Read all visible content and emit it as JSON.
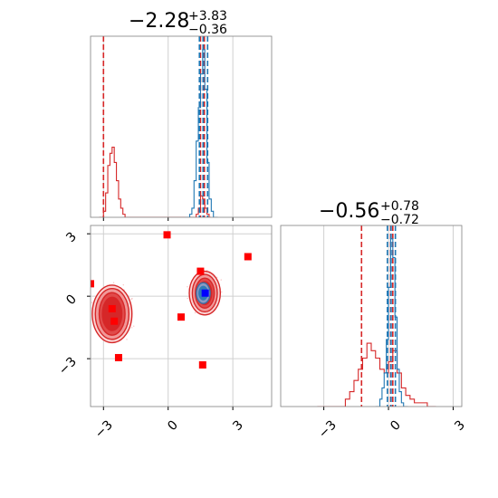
{
  "colors": {
    "red": "#d62728",
    "blue": "#1f77b4",
    "marker_red": "#ff0000",
    "marker_blue": "#0000ff",
    "frame": "#808080",
    "grid": "#d0d0d0"
  },
  "chart_data": [
    {
      "type": "histogram",
      "panel": "top-left",
      "title": {
        "median": "−2.28",
        "upper": "+3.83",
        "lower": "−0.36"
      },
      "xlim": [
        -3.6,
        4.8
      ],
      "grid": true,
      "series": [
        {
          "color": "red",
          "bins": [
            [
              -3.2,
              -3.0,
              0
            ],
            [
              -3.0,
              -2.9,
              2
            ],
            [
              -2.9,
              -2.8,
              8
            ],
            [
              -2.8,
              -2.7,
              17
            ],
            [
              -2.7,
              -2.6,
              21
            ],
            [
              -2.6,
              -2.5,
              23
            ],
            [
              -2.5,
              -2.4,
              18
            ],
            [
              -2.4,
              -2.3,
              12
            ],
            [
              -2.3,
              -2.2,
              6
            ],
            [
              -2.2,
              -2.1,
              3
            ],
            [
              -2.1,
              -2.0,
              1
            ],
            [
              -2.0,
              -1.5,
              0
            ],
            [
              1.0,
              1.3,
              0
            ],
            [
              1.3,
              1.4,
              1
            ],
            [
              1.4,
              1.5,
              3
            ],
            [
              1.5,
              1.6,
              7
            ],
            [
              1.6,
              1.7,
              6
            ],
            [
              1.7,
              1.8,
              3
            ],
            [
              1.8,
              1.9,
              1
            ],
            [
              1.9,
              2.0,
              0
            ]
          ],
          "quantiles": [
            -3.0,
            1.5,
            1.68
          ]
        },
        {
          "color": "blue",
          "bins": [
            [
              0.8,
              1.0,
              0
            ],
            [
              1.0,
              1.1,
              1
            ],
            [
              1.1,
              1.2,
              3
            ],
            [
              1.2,
              1.3,
              12
            ],
            [
              1.3,
              1.4,
              25
            ],
            [
              1.4,
              1.5,
              36
            ],
            [
              1.5,
              1.6,
              47
            ],
            [
              1.6,
              1.7,
              55
            ],
            [
              1.7,
              1.8,
              42
            ],
            [
              1.8,
              1.9,
              18
            ],
            [
              1.9,
              2.0,
              6
            ],
            [
              2.0,
              2.1,
              2
            ],
            [
              2.1,
              2.3,
              0
            ]
          ],
          "quantiles": [
            1.45,
            1.62,
            1.83
          ]
        }
      ]
    },
    {
      "type": "histogram",
      "panel": "bottom-right",
      "title": {
        "median": "−0.56",
        "upper": "+0.78",
        "lower": "−0.72"
      },
      "xlim": [
        -5.0,
        3.4
      ],
      "xticks": [
        "−3",
        "0",
        "3"
      ],
      "grid": true,
      "series": [
        {
          "color": "red",
          "bins": [
            [
              -3.3,
              -2.0,
              0
            ],
            [
              -2.0,
              -1.8,
              2
            ],
            [
              -1.8,
              -1.6,
              4
            ],
            [
              -1.6,
              -1.4,
              7
            ],
            [
              -1.4,
              -1.2,
              10
            ],
            [
              -1.2,
              -1.0,
              13
            ],
            [
              -1.0,
              -0.8,
              17
            ],
            [
              -0.8,
              -0.6,
              15
            ],
            [
              -0.6,
              -0.4,
              13
            ],
            [
              -0.4,
              -0.2,
              10
            ],
            [
              -0.2,
              0.0,
              9
            ],
            [
              0.0,
              0.2,
              12
            ],
            [
              0.2,
              0.4,
              15
            ],
            [
              0.4,
              0.6,
              9
            ],
            [
              0.6,
              0.8,
              5
            ],
            [
              0.8,
              1.0,
              3
            ],
            [
              1.0,
              1.2,
              2
            ],
            [
              1.2,
              1.4,
              1
            ],
            [
              1.4,
              1.8,
              1
            ],
            [
              1.8,
              2.2,
              0
            ]
          ],
          "quantiles": [
            -1.25,
            0.1,
            0.2
          ]
        },
        {
          "color": "blue",
          "bins": [
            [
              -0.6,
              -0.4,
              0
            ],
            [
              -0.4,
              -0.3,
              2
            ],
            [
              -0.3,
              -0.2,
              5
            ],
            [
              -0.2,
              -0.1,
              9
            ],
            [
              -0.1,
              0.0,
              18
            ],
            [
              0.0,
              0.1,
              32
            ],
            [
              0.1,
              0.2,
              45
            ],
            [
              0.2,
              0.3,
              40
            ],
            [
              0.3,
              0.4,
              24
            ],
            [
              0.4,
              0.5,
              10
            ],
            [
              0.5,
              0.6,
              4
            ],
            [
              0.6,
              0.7,
              1
            ],
            [
              0.7,
              0.9,
              0
            ]
          ],
          "quantiles": [
            -0.05,
            0.12,
            0.32
          ]
        }
      ]
    },
    {
      "type": "scatter",
      "panel": "bottom-left",
      "xlim": [
        -3.6,
        4.8
      ],
      "ylim": [
        -5.3,
        3.4
      ],
      "xticks": [
        "−3",
        "0",
        "3"
      ],
      "yticks": [
        "3",
        "0",
        "−3"
      ],
      "grid": true,
      "contours": [
        {
          "cx": -2.6,
          "cy": -0.85,
          "levels": [
            [
              0.92,
              1.38
            ],
            [
              0.78,
              1.22
            ],
            [
              0.6,
              1.02
            ],
            [
              0.45,
              0.8
            ]
          ],
          "color": "red"
        },
        {
          "cx": 1.7,
          "cy": 0.15,
          "levels": [
            [
              0.72,
              1.05
            ],
            [
              0.58,
              0.9
            ],
            [
              0.44,
              0.72
            ],
            [
              0.32,
              0.55
            ]
          ],
          "color": "red"
        },
        {
          "cx": 1.63,
          "cy": 0.15,
          "levels": [
            [
              0.32,
              0.5
            ],
            [
              0.2,
              0.32
            ]
          ],
          "color": "blue"
        }
      ],
      "points": [
        {
          "x": -3.6,
          "y": 0.6,
          "color": "marker_red"
        },
        {
          "x": -0.05,
          "y": 2.95,
          "color": "marker_red"
        },
        {
          "x": 3.7,
          "y": 1.9,
          "color": "marker_red"
        },
        {
          "x": 1.5,
          "y": 1.2,
          "color": "marker_red"
        },
        {
          "x": -2.6,
          "y": -0.6,
          "color": "marker_red"
        },
        {
          "x": -2.5,
          "y": -1.2,
          "color": "marker_red"
        },
        {
          "x": 0.6,
          "y": -1.0,
          "color": "marker_red"
        },
        {
          "x": -2.3,
          "y": -2.95,
          "color": "marker_red"
        },
        {
          "x": 1.6,
          "y": -3.3,
          "color": "marker_red"
        },
        {
          "x": 1.72,
          "y": 0.15,
          "color": "marker_blue"
        }
      ]
    }
  ]
}
